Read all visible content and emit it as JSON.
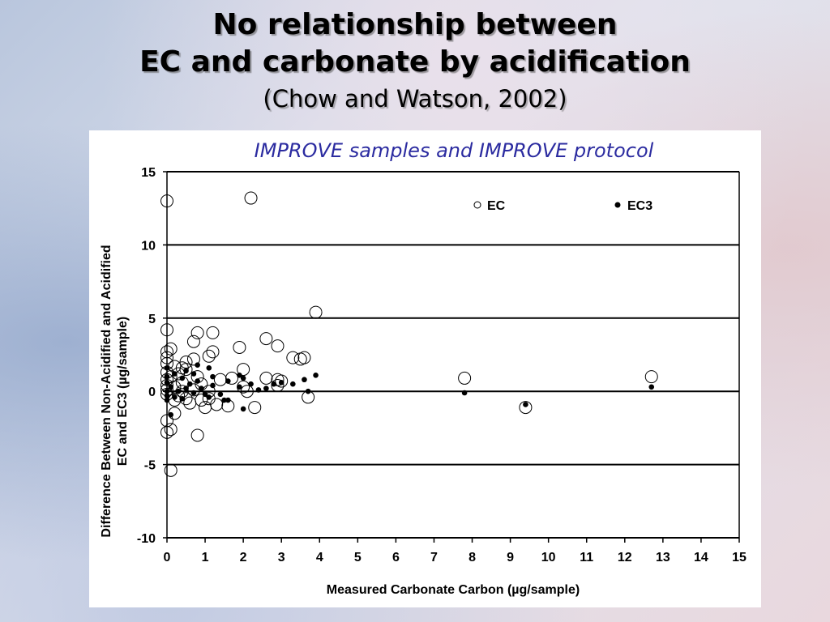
{
  "slide": {
    "title_line1": "No relationship between",
    "title_line2": "EC and carbonate by acidification",
    "subtitle": "(Chow and Watson, 2002)"
  },
  "chart_data": {
    "type": "scatter",
    "title": "IMPROVE samples and IMPROVE protocol",
    "xlabel": "Measured Carbonate Carbon (µg/sample)",
    "ylabel_lines": [
      "Difference Between Non-Acidified and Acidified",
      "EC and EC3 (µg/sample)"
    ],
    "xlim": [
      0,
      15
    ],
    "ylim": [
      -10,
      15
    ],
    "x_ticks": [
      0,
      1,
      2,
      3,
      4,
      5,
      6,
      7,
      8,
      9,
      10,
      11,
      12,
      13,
      14,
      15
    ],
    "y_ticks": [
      -10,
      -5,
      0,
      5,
      10,
      15
    ],
    "grid": "horizontal",
    "legend_position": "top-right",
    "colors": {
      "title": "#2b2ba0",
      "marker": "#000000"
    },
    "series": [
      {
        "name": "EC",
        "marker": "open-circle",
        "points": [
          [
            0.0,
            13.0
          ],
          [
            2.2,
            13.2
          ],
          [
            3.9,
            5.4
          ],
          [
            0.0,
            4.2
          ],
          [
            0.8,
            4.0
          ],
          [
            1.2,
            4.0
          ],
          [
            0.7,
            3.4
          ],
          [
            2.6,
            3.6
          ],
          [
            2.9,
            3.1
          ],
          [
            1.9,
            3.0
          ],
          [
            0.1,
            2.9
          ],
          [
            0.0,
            2.7
          ],
          [
            1.2,
            2.7
          ],
          [
            1.1,
            2.4
          ],
          [
            0.0,
            2.3
          ],
          [
            0.7,
            2.2
          ],
          [
            0.5,
            2.0
          ],
          [
            3.3,
            2.3
          ],
          [
            3.5,
            2.2
          ],
          [
            3.6,
            2.3
          ],
          [
            0.0,
            1.9
          ],
          [
            0.2,
            1.7
          ],
          [
            0.4,
            1.6
          ],
          [
            0.5,
            1.5
          ],
          [
            2.0,
            1.5
          ],
          [
            0.0,
            1.3
          ],
          [
            0.3,
            1.2
          ],
          [
            0.8,
            1.0
          ],
          [
            0.1,
            1.0
          ],
          [
            0.0,
            0.8
          ],
          [
            0.4,
            0.6
          ],
          [
            1.4,
            0.8
          ],
          [
            1.7,
            0.9
          ],
          [
            2.6,
            0.9
          ],
          [
            2.9,
            0.8
          ],
          [
            3.0,
            0.7
          ],
          [
            0.9,
            0.5
          ],
          [
            0.0,
            0.4
          ],
          [
            0.2,
            0.3
          ],
          [
            2.0,
            0.3
          ],
          [
            2.9,
            0.4
          ],
          [
            0.0,
            0.1
          ],
          [
            0.4,
            0.0
          ],
          [
            0.7,
            0.1
          ],
          [
            1.1,
            0.0
          ],
          [
            2.1,
            0.0
          ],
          [
            0.0,
            -0.2
          ],
          [
            0.3,
            -0.3
          ],
          [
            0.5,
            -0.5
          ],
          [
            0.9,
            -0.6
          ],
          [
            1.1,
            -0.5
          ],
          [
            0.2,
            -0.6
          ],
          [
            1.3,
            -0.9
          ],
          [
            1.6,
            -1.0
          ],
          [
            0.6,
            -0.8
          ],
          [
            1.0,
            -1.1
          ],
          [
            2.3,
            -1.1
          ],
          [
            3.7,
            -0.4
          ],
          [
            0.2,
            -1.5
          ],
          [
            0.0,
            -2.0
          ],
          [
            0.1,
            -2.6
          ],
          [
            0.0,
            -2.8
          ],
          [
            0.8,
            -3.0
          ],
          [
            0.1,
            -5.4
          ],
          [
            7.8,
            0.9
          ],
          [
            9.4,
            -1.1
          ],
          [
            12.7,
            1.0
          ]
        ]
      },
      {
        "name": "EC3",
        "marker": "filled-dot",
        "points": [
          [
            0.0,
            1.6
          ],
          [
            0.8,
            1.8
          ],
          [
            1.1,
            1.6
          ],
          [
            0.5,
            1.4
          ],
          [
            0.2,
            1.2
          ],
          [
            0.7,
            1.2
          ],
          [
            1.2,
            1.0
          ],
          [
            0.0,
            1.0
          ],
          [
            0.4,
            0.9
          ],
          [
            0.8,
            0.7
          ],
          [
            1.6,
            0.7
          ],
          [
            1.9,
            1.1
          ],
          [
            2.0,
            0.9
          ],
          [
            3.9,
            1.1
          ],
          [
            3.6,
            0.8
          ],
          [
            3.0,
            0.6
          ],
          [
            2.8,
            0.5
          ],
          [
            3.3,
            0.5
          ],
          [
            2.2,
            0.5
          ],
          [
            0.0,
            0.6
          ],
          [
            0.6,
            0.5
          ],
          [
            1.2,
            0.4
          ],
          [
            0.1,
            0.3
          ],
          [
            0.5,
            0.2
          ],
          [
            0.9,
            0.2
          ],
          [
            2.6,
            0.2
          ],
          [
            2.4,
            0.1
          ],
          [
            0.0,
            0.0
          ],
          [
            0.3,
            0.0
          ],
          [
            0.7,
            -0.1
          ],
          [
            1.0,
            -0.2
          ],
          [
            1.4,
            -0.2
          ],
          [
            0.0,
            -0.3
          ],
          [
            0.2,
            -0.4
          ],
          [
            0.4,
            -0.5
          ],
          [
            1.1,
            -0.4
          ],
          [
            1.5,
            -0.6
          ],
          [
            1.6,
            -0.6
          ],
          [
            0.0,
            -0.6
          ],
          [
            2.0,
            -1.2
          ],
          [
            0.1,
            -1.6
          ],
          [
            1.9,
            0.3
          ],
          [
            3.7,
            0.0
          ],
          [
            7.8,
            -0.1
          ],
          [
            9.4,
            -0.9
          ],
          [
            12.7,
            0.3
          ]
        ]
      }
    ]
  }
}
